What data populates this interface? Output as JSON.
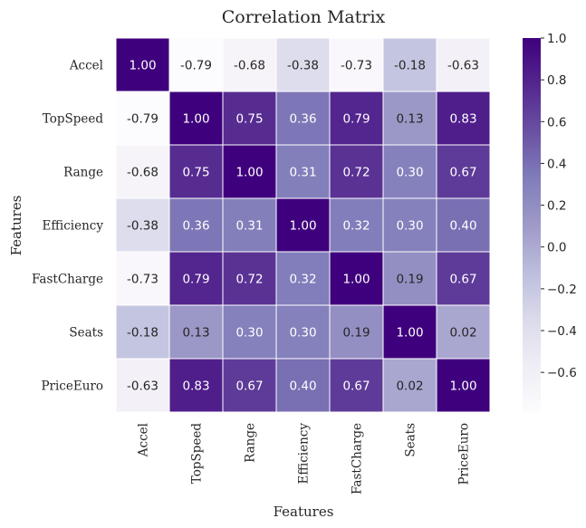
{
  "chart_data": {
    "type": "heatmap",
    "title": "Correlation Matrix",
    "xlabel": "Features",
    "ylabel": "Features",
    "labels": [
      "Accel",
      "TopSpeed",
      "Range",
      "Efficiency",
      "FastCharge",
      "Seats",
      "PriceEuro"
    ],
    "values": [
      [
        1.0,
        -0.79,
        -0.68,
        -0.38,
        -0.73,
        -0.18,
        -0.63
      ],
      [
        -0.79,
        1.0,
        0.75,
        0.36,
        0.79,
        0.13,
        0.83
      ],
      [
        -0.68,
        0.75,
        1.0,
        0.31,
        0.72,
        0.3,
        0.67
      ],
      [
        -0.38,
        0.36,
        0.31,
        1.0,
        0.32,
        0.3,
        0.4
      ],
      [
        -0.73,
        0.79,
        0.72,
        0.32,
        1.0,
        0.19,
        0.67
      ],
      [
        -0.18,
        0.13,
        0.3,
        0.3,
        0.19,
        1.0,
        0.02
      ],
      [
        -0.63,
        0.83,
        0.67,
        0.4,
        0.67,
        0.02,
        1.0
      ]
    ],
    "value_format": "0.00",
    "colormap": "Purples",
    "colorbar": {
      "min": -0.79,
      "max": 1.0,
      "ticks": [
        1.0,
        0.8,
        0.6,
        0.4,
        0.2,
        0.0,
        -0.2,
        -0.4,
        -0.6
      ],
      "tick_labels": [
        "1.0",
        "0.8",
        "0.6",
        "0.4",
        "0.2",
        "0.0",
        "−0.2",
        "−0.4",
        "−0.6"
      ]
    },
    "grid": false,
    "cell_border_color": "#ffffff"
  }
}
